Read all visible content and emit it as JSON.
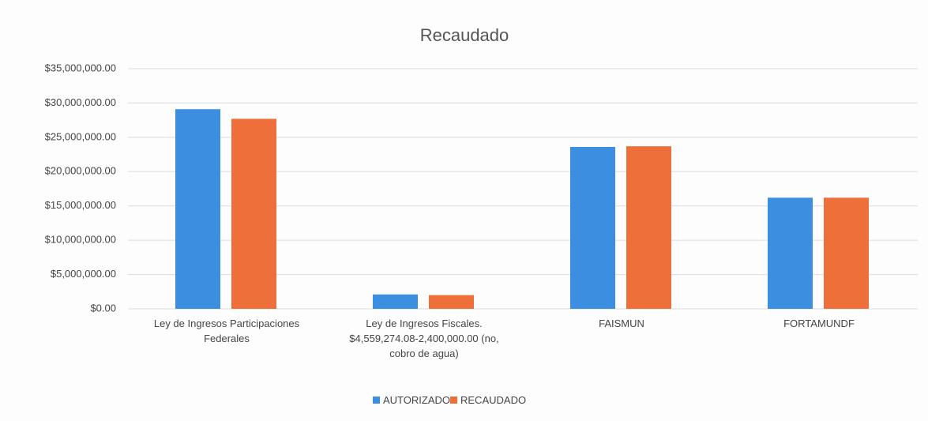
{
  "chart_data": {
    "type": "bar",
    "title": "Recaudado",
    "categories": [
      "Ley de Ingresos Participaciones Federales",
      "Ley de Ingresos Fiscales. $4,559,274.08-2,400,000.00 (no, cobro de agua)",
      "FAISMUN",
      "FORTAMUNDF"
    ],
    "series": [
      {
        "name": "AUTORIZADO",
        "color": "#3b8ee0",
        "values": [
          29100000,
          2100000,
          23600000,
          16200000
        ]
      },
      {
        "name": "RECAUDADO",
        "color": "#ef6f3a",
        "values": [
          27700000,
          2000000,
          23700000,
          16200000
        ]
      }
    ],
    "ylim": [
      0,
      35000000
    ],
    "yticks": [
      {
        "value": 0,
        "label": "$0.00"
      },
      {
        "value": 5000000,
        "label": "$5,000,000.00"
      },
      {
        "value": 10000000,
        "label": "$10,000,000.00"
      },
      {
        "value": 15000000,
        "label": "$15,000,000.00"
      },
      {
        "value": 20000000,
        "label": "$20,000,000.00"
      },
      {
        "value": 25000000,
        "label": "$25,000,000.00"
      },
      {
        "value": 30000000,
        "label": "$30,000,000.00"
      },
      {
        "value": 35000000,
        "label": "$35,000,000.00"
      }
    ],
    "grid": true,
    "legend": "bottom"
  }
}
